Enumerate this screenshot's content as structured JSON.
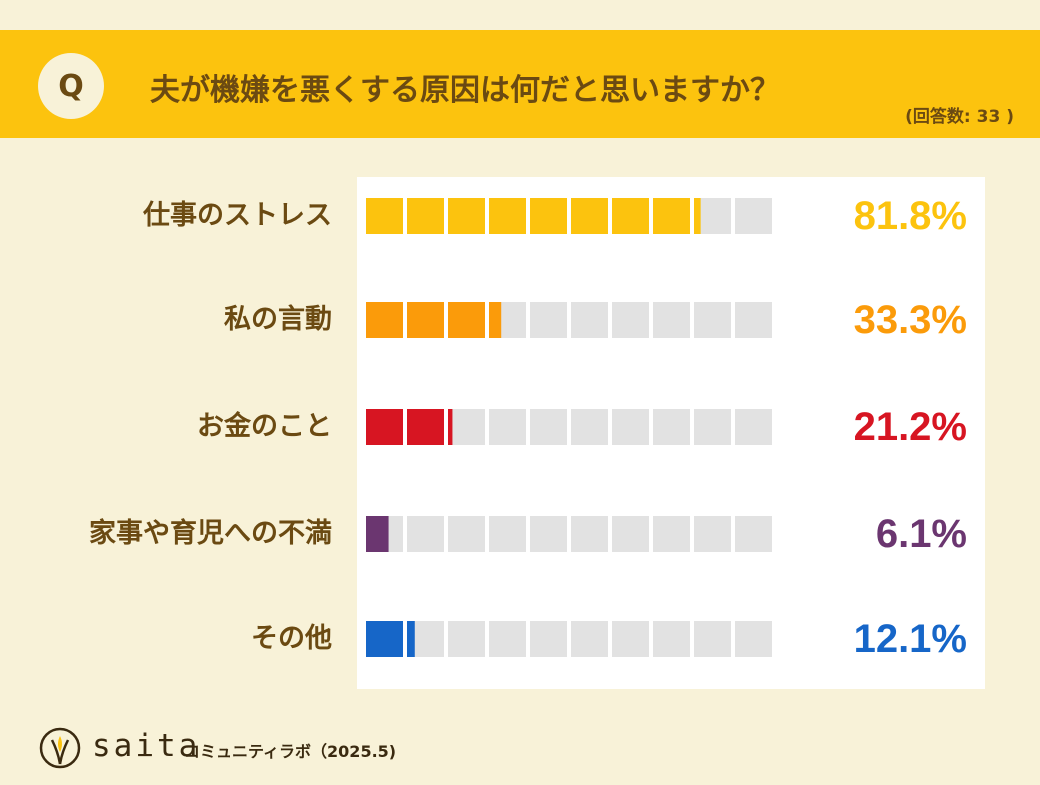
{
  "header": {
    "badge": "Q",
    "question": "夫が機嫌を悪くする原因は何だと思いますか？",
    "respondents": "(回答数: 33 )"
  },
  "chart_data": {
    "type": "bar",
    "orientation": "horizontal",
    "categories": [
      "仕事のストレス",
      "私の言動",
      "お金のこと",
      "家事や育児への不満",
      "その他"
    ],
    "values": [
      81.8,
      33.3,
      21.2,
      6.1,
      12.1
    ],
    "value_labels": [
      "81.8%",
      "33.3%",
      "21.2%",
      "6.1%",
      "12.1%"
    ],
    "colors": [
      "#fcc30e",
      "#fb9b0a",
      "#d71522",
      "#6b3670",
      "#1666c8"
    ],
    "empty_color": "#e2e2e2",
    "segments": 10,
    "xlim": [
      0,
      100
    ]
  },
  "footer": {
    "brand": "saita",
    "subtitle": "コミュニティラボ（2025.5)"
  }
}
